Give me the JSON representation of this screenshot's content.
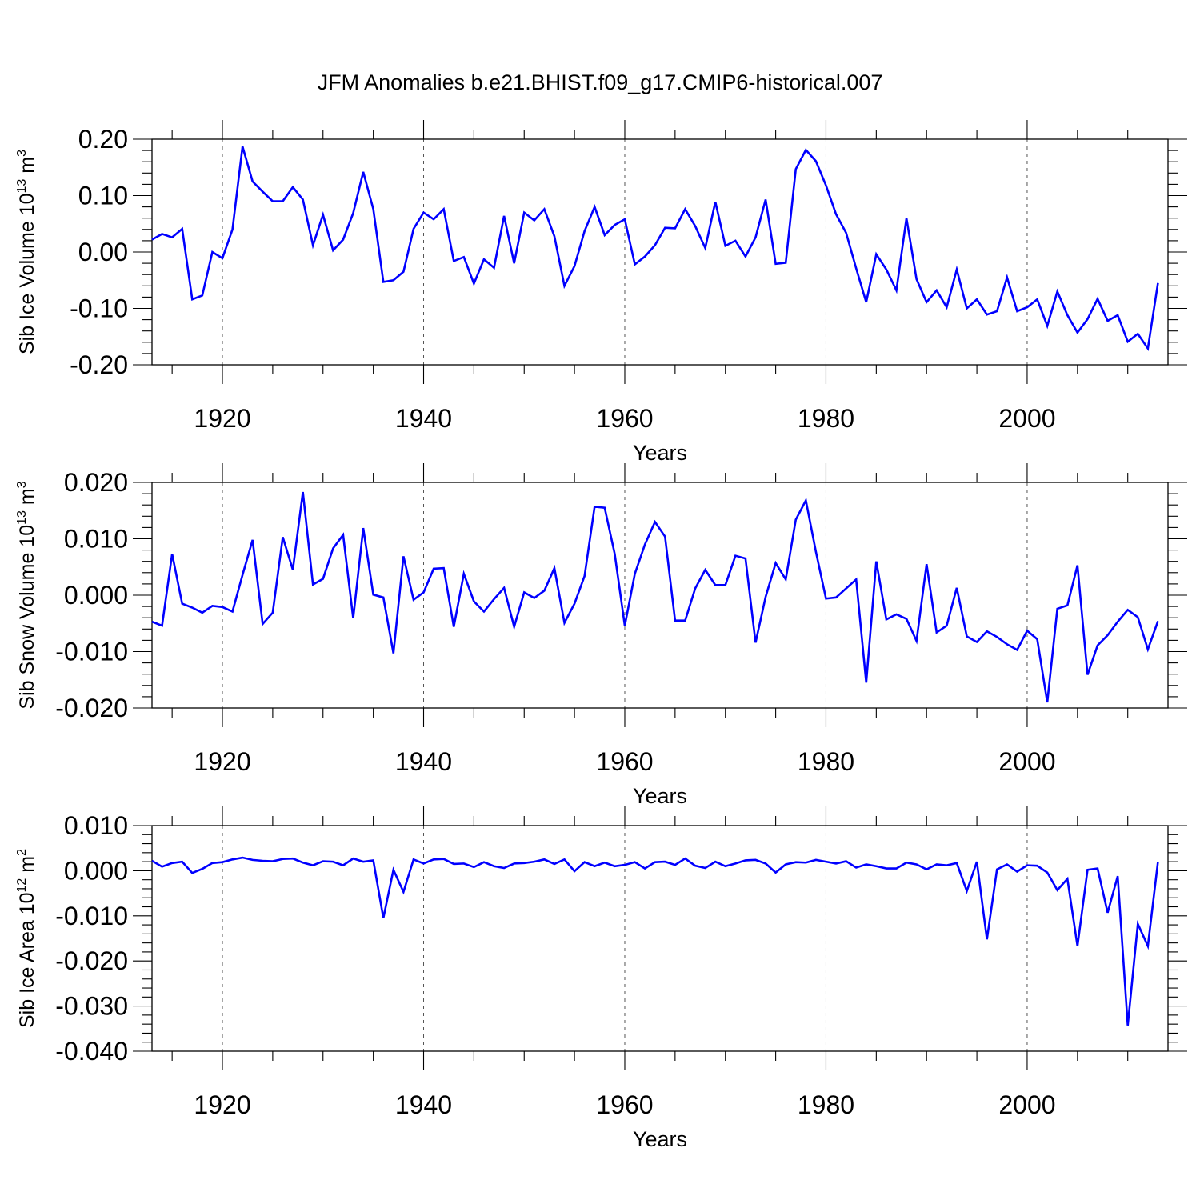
{
  "figure": {
    "title": "JFM Anomalies b.e21.BHIST.f09_g17.CMIP6-historical.007",
    "line_color": "#0000ff"
  },
  "chart_data": [
    {
      "type": "line",
      "ylabel_main": "Sib Ice Volume 10",
      "ylabel_exp": "13",
      "ylabel_unit": "m",
      "ylabel_unit_exp": "3",
      "xlabel": "Years",
      "xlim": [
        1913,
        2014
      ],
      "ylim": [
        -0.2,
        0.2
      ],
      "x_major_ticks": [
        1920,
        1940,
        1960,
        1980,
        2000
      ],
      "x_tick_labels": [
        "1920",
        "1940",
        "1960",
        "1980",
        "2000"
      ],
      "y_major_ticks": [
        -0.2,
        -0.1,
        0.0,
        0.1,
        0.2
      ],
      "y_tick_labels": [
        "-0.20",
        "-0.10",
        "0.00",
        "0.10",
        "0.20"
      ],
      "y_minor_step": 0.02,
      "x_start": 1913,
      "values": [
        0.022,
        0.032,
        0.026,
        0.041,
        -0.084,
        -0.077,
        0.0,
        -0.011,
        0.04,
        0.187,
        0.125,
        0.107,
        0.09,
        0.09,
        0.115,
        0.093,
        0.012,
        0.066,
        0.003,
        0.022,
        0.069,
        0.142,
        0.076,
        -0.053,
        -0.05,
        -0.035,
        0.041,
        0.07,
        0.058,
        0.076,
        -0.016,
        -0.009,
        -0.056,
        -0.013,
        -0.028,
        0.064,
        -0.02,
        0.07,
        0.056,
        0.076,
        0.028,
        -0.06,
        -0.025,
        0.037,
        0.08,
        0.03,
        0.048,
        0.058,
        -0.022,
        -0.008,
        0.012,
        0.043,
        0.042,
        0.076,
        0.046,
        0.007,
        0.089,
        0.011,
        0.02,
        -0.008,
        0.026,
        0.093,
        -0.021,
        -0.019,
        0.147,
        0.181,
        0.161,
        0.118,
        0.067,
        0.034,
        -0.029,
        -0.089,
        -0.004,
        -0.031,
        -0.068,
        0.06,
        -0.048,
        -0.089,
        -0.068,
        -0.098,
        -0.031,
        -0.1,
        -0.084,
        -0.111,
        -0.105,
        -0.045,
        -0.105,
        -0.098,
        -0.084,
        -0.131,
        -0.07,
        -0.112,
        -0.143,
        -0.119,
        -0.083,
        -0.122,
        -0.112,
        -0.159,
        -0.145,
        -0.171,
        -0.055
      ]
    },
    {
      "type": "line",
      "ylabel_main": "Sib Snow Volume 10",
      "ylabel_exp": "13",
      "ylabel_unit": "m",
      "ylabel_unit_exp": "3",
      "xlabel": "Years",
      "xlim": [
        1913,
        2014
      ],
      "ylim": [
        -0.02,
        0.02
      ],
      "x_major_ticks": [
        1920,
        1940,
        1960,
        1980,
        2000
      ],
      "x_tick_labels": [
        "1920",
        "1940",
        "1960",
        "1980",
        "2000"
      ],
      "y_major_ticks": [
        -0.02,
        -0.01,
        0.0,
        0.01,
        0.02
      ],
      "y_tick_labels": [
        "-0.020",
        "-0.010",
        "0.000",
        "0.010",
        "0.020"
      ],
      "y_minor_step": 0.002,
      "x_start": 1913,
      "values": [
        -0.0047,
        -0.0054,
        0.0073,
        -0.0015,
        -0.0022,
        -0.0031,
        -0.0019,
        -0.0021,
        -0.0029,
        0.0036,
        0.0098,
        -0.0051,
        -0.0031,
        0.0103,
        0.0045,
        0.0183,
        0.0019,
        0.0029,
        0.0083,
        0.0107,
        -0.0041,
        0.0119,
        0.0001,
        -0.0004,
        -0.0103,
        0.0069,
        -0.0008,
        0.0005,
        0.0047,
        0.0048,
        -0.0056,
        0.0038,
        -0.0011,
        -0.0029,
        -0.0007,
        0.0013,
        -0.0056,
        0.0005,
        -0.0005,
        0.0008,
        0.0048,
        -0.0049,
        -0.0015,
        0.0034,
        0.0157,
        0.0155,
        0.0073,
        -0.0054,
        0.0038,
        0.009,
        0.013,
        0.0104,
        -0.0045,
        -0.0045,
        0.0012,
        0.0045,
        0.0018,
        0.0018,
        0.007,
        0.0065,
        -0.0084,
        -0.0003,
        0.0057,
        0.0028,
        0.0134,
        0.0168,
        0.0077,
        -0.0006,
        -0.0004,
        0.0012,
        0.0028,
        -0.0155,
        0.006,
        -0.0043,
        -0.0034,
        -0.0042,
        -0.0081,
        0.0055,
        -0.0066,
        -0.0054,
        0.0013,
        -0.0073,
        -0.0083,
        -0.0064,
        -0.0074,
        -0.0087,
        -0.0097,
        -0.0063,
        -0.0078,
        -0.019,
        -0.0024,
        -0.0018,
        0.0053,
        -0.0141,
        -0.0089,
        -0.0071,
        -0.0047,
        -0.0026,
        -0.0039,
        -0.0096,
        -0.0046
      ]
    },
    {
      "type": "line",
      "ylabel_main": "Sib Ice Area 10",
      "ylabel_exp": "12",
      "ylabel_unit": "m",
      "ylabel_unit_exp": "2",
      "xlabel": "Years",
      "xlim": [
        1913,
        2014
      ],
      "ylim": [
        -0.04,
        0.01
      ],
      "x_major_ticks": [
        1920,
        1940,
        1960,
        1980,
        2000
      ],
      "x_tick_labels": [
        "1920",
        "1940",
        "1960",
        "1980",
        "2000"
      ],
      "y_major_ticks": [
        -0.04,
        -0.03,
        -0.02,
        -0.01,
        0.0,
        0.01
      ],
      "y_tick_labels": [
        "-0.040",
        "-0.030",
        "-0.020",
        "-0.010",
        "0.000",
        "0.010"
      ],
      "y_minor_step": 0.002,
      "x_start": 1913,
      "values": [
        0.0022,
        0.0009,
        0.0017,
        0.002,
        -0.0005,
        0.0004,
        0.0017,
        0.0019,
        0.0025,
        0.0029,
        0.0024,
        0.0022,
        0.0021,
        0.0026,
        0.0027,
        0.0018,
        0.0012,
        0.0021,
        0.002,
        0.0012,
        0.0027,
        0.002,
        0.0023,
        -0.0105,
        0.0002,
        -0.0047,
        0.0025,
        0.0016,
        0.0025,
        0.0026,
        0.0015,
        0.0016,
        0.0008,
        0.0019,
        0.001,
        0.0006,
        0.0016,
        0.0017,
        0.002,
        0.0025,
        0.0015,
        0.0025,
        -0.0001,
        0.0019,
        0.001,
        0.0018,
        0.001,
        0.0013,
        0.0019,
        0.0005,
        0.0019,
        0.002,
        0.0013,
        0.0027,
        0.0011,
        0.0006,
        0.002,
        0.001,
        0.0016,
        0.0023,
        0.0024,
        0.0016,
        -0.0004,
        0.0014,
        0.0019,
        0.0018,
        0.0024,
        0.002,
        0.0016,
        0.0021,
        0.0007,
        0.0014,
        0.001,
        0.0005,
        0.0005,
        0.0018,
        0.0014,
        0.0003,
        0.0014,
        0.0012,
        0.0017,
        -0.0045,
        0.002,
        -0.0152,
        0.0003,
        0.0014,
        -0.0002,
        0.0012,
        0.0011,
        -0.0004,
        -0.0043,
        -0.0018,
        -0.0167,
        0.0002,
        0.0005,
        -0.0093,
        -0.0012,
        -0.0343,
        -0.0118,
        -0.0167,
        0.002
      ]
    }
  ]
}
